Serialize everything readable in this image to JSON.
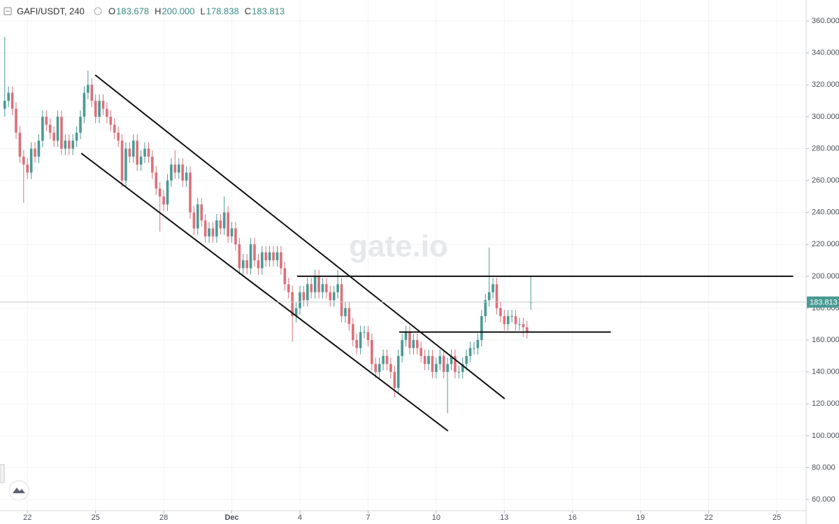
{
  "header": {
    "symbol": "GAFI/USDT, 240",
    "fields": [
      {
        "key": "O",
        "text": "183.678"
      },
      {
        "key": "H",
        "text": "200.000"
      },
      {
        "key": "L",
        "text": "178.838"
      },
      {
        "key": "C",
        "text": "183.813"
      }
    ]
  },
  "watermark": "gate.io",
  "chart_data": {
    "type": "candlestick",
    "up_color": "#4a9a94",
    "down_color": "#dc707b",
    "grid": true,
    "xlim": [
      -29,
      823
    ],
    "ylim": [
      53,
      373.2
    ],
    "xticks": [
      {
        "value": 0,
        "label": "22"
      },
      {
        "value": 72,
        "label": "25"
      },
      {
        "value": 144,
        "label": "28"
      },
      {
        "value": 216,
        "label": "Dec"
      },
      {
        "value": 288,
        "label": "4"
      },
      {
        "value": 360,
        "label": "7"
      },
      {
        "value": 432,
        "label": "10"
      },
      {
        "value": 504,
        "label": "13"
      },
      {
        "value": 576,
        "label": "16"
      },
      {
        "value": 648,
        "label": "19"
      },
      {
        "value": 720,
        "label": "22"
      },
      {
        "value": 792,
        "label": "25"
      }
    ],
    "yticks": [
      {
        "value": 60,
        "label": "60.000"
      },
      {
        "value": 80,
        "label": "80.000"
      },
      {
        "value": 100,
        "label": "100.000"
      },
      {
        "value": 120,
        "label": "120.000"
      },
      {
        "value": 140,
        "label": "140.000"
      },
      {
        "value": 160,
        "label": "160.000"
      },
      {
        "value": 180,
        "label": "180.000"
      },
      {
        "value": 200,
        "label": "200.000"
      },
      {
        "value": 220,
        "label": "220.000"
      },
      {
        "value": 240,
        "label": "240.000"
      },
      {
        "value": 260,
        "label": "260.000"
      },
      {
        "value": 280,
        "label": "280.000"
      },
      {
        "value": 300,
        "label": "300.000"
      },
      {
        "value": 320,
        "label": "320.000"
      },
      {
        "value": 340,
        "label": "340.000"
      },
      {
        "value": 360,
        "label": "360.000"
      }
    ],
    "last_price": {
      "value": 183.813,
      "label": "183.813"
    },
    "x": [
      -24,
      -20,
      -16,
      -12,
      -8,
      -4,
      0,
      4,
      8,
      12,
      16,
      20,
      24,
      28,
      32,
      36,
      40,
      44,
      48,
      52,
      56,
      60,
      64,
      68,
      72,
      76,
      80,
      84,
      88,
      92,
      96,
      100,
      104,
      108,
      112,
      116,
      120,
      124,
      128,
      132,
      136,
      140,
      144,
      148,
      152,
      156,
      160,
      164,
      168,
      172,
      176,
      180,
      184,
      188,
      192,
      196,
      200,
      204,
      208,
      212,
      216,
      220,
      224,
      228,
      232,
      236,
      240,
      244,
      248,
      252,
      256,
      260,
      264,
      268,
      272,
      276,
      280,
      284,
      288,
      292,
      296,
      300,
      304,
      308,
      312,
      316,
      320,
      324,
      328,
      332,
      336,
      340,
      344,
      348,
      352,
      356,
      360,
      364,
      368,
      372,
      376,
      380,
      384,
      388,
      392,
      396,
      400,
      404,
      408,
      412,
      416,
      420,
      424,
      428,
      432,
      436,
      440,
      444,
      448,
      452,
      456,
      460,
      464,
      468,
      472,
      476,
      480,
      484,
      488,
      492,
      496,
      500,
      504,
      508,
      512,
      516,
      520,
      524,
      528,
      532
    ],
    "ohlc": [
      [
        305,
        350,
        300,
        310
      ],
      [
        310,
        319,
        306,
        315
      ],
      [
        315,
        319,
        301,
        305
      ],
      [
        305,
        309,
        286,
        290
      ],
      [
        290,
        294,
        271,
        275
      ],
      [
        275,
        279,
        246,
        270
      ],
      [
        270,
        274,
        261,
        265
      ],
      [
        265,
        284,
        261,
        280
      ],
      [
        280,
        284,
        271,
        275
      ],
      [
        275,
        289,
        271,
        285
      ],
      [
        285,
        304,
        281,
        300
      ],
      [
        300,
        304,
        291,
        295
      ],
      [
        295,
        299,
        286,
        290
      ],
      [
        290,
        294,
        281,
        285
      ],
      [
        285,
        304,
        281,
        300
      ],
      [
        300,
        304,
        276,
        280
      ],
      [
        280,
        289,
        276,
        285
      ],
      [
        285,
        289,
        276,
        280
      ],
      [
        280,
        289,
        276,
        285
      ],
      [
        285,
        294,
        281,
        290
      ],
      [
        290,
        304,
        286,
        300
      ],
      [
        300,
        319,
        296,
        315
      ],
      [
        315,
        329,
        311,
        320
      ],
      [
        320,
        324,
        306,
        310
      ],
      [
        310,
        314,
        296,
        300
      ],
      [
        300,
        314,
        296,
        310
      ],
      [
        310,
        314,
        301,
        305
      ],
      [
        305,
        309,
        296,
        300
      ],
      [
        300,
        304,
        291,
        295
      ],
      [
        295,
        299,
        286,
        290
      ],
      [
        290,
        294,
        281,
        285
      ],
      [
        285,
        289,
        256,
        260
      ],
      [
        260,
        284,
        256,
        280
      ],
      [
        280,
        284,
        271,
        275
      ],
      [
        275,
        289,
        271,
        285
      ],
      [
        285,
        289,
        266,
        270
      ],
      [
        270,
        279,
        266,
        275
      ],
      [
        275,
        284,
        271,
        280
      ],
      [
        280,
        284,
        271,
        275
      ],
      [
        275,
        279,
        261,
        265
      ],
      [
        265,
        269,
        251,
        255
      ],
      [
        255,
        259,
        228,
        250
      ],
      [
        250,
        254,
        241,
        245
      ],
      [
        245,
        264,
        241,
        260
      ],
      [
        260,
        274,
        256,
        270
      ],
      [
        270,
        279,
        261,
        265
      ],
      [
        265,
        274,
        261,
        270
      ],
      [
        270,
        274,
        256,
        260
      ],
      [
        260,
        269,
        256,
        265
      ],
      [
        265,
        269,
        236,
        240
      ],
      [
        240,
        244,
        226,
        230
      ],
      [
        230,
        249,
        226,
        245
      ],
      [
        245,
        249,
        231,
        235
      ],
      [
        235,
        239,
        221,
        225
      ],
      [
        225,
        234,
        221,
        230
      ],
      [
        230,
        234,
        221,
        225
      ],
      [
        225,
        239,
        221,
        235
      ],
      [
        235,
        239,
        226,
        230
      ],
      [
        230,
        250,
        226,
        240
      ],
      [
        240,
        244,
        221,
        225
      ],
      [
        225,
        234,
        221,
        230
      ],
      [
        230,
        234,
        216,
        220
      ],
      [
        220,
        224,
        201,
        205
      ],
      [
        205,
        214,
        201,
        210
      ],
      [
        210,
        214,
        201,
        205
      ],
      [
        205,
        224,
        201,
        220
      ],
      [
        220,
        224,
        206,
        210
      ],
      [
        210,
        214,
        201,
        205
      ],
      [
        205,
        219,
        201,
        215
      ],
      [
        215,
        219,
        206,
        210
      ],
      [
        210,
        219,
        206,
        215
      ],
      [
        215,
        219,
        206,
        210
      ],
      [
        210,
        219,
        206,
        215
      ],
      [
        215,
        219,
        201,
        205
      ],
      [
        205,
        209,
        191,
        195
      ],
      [
        195,
        199,
        186,
        190
      ],
      [
        190,
        194,
        159,
        175
      ],
      [
        175,
        184,
        171,
        180
      ],
      [
        180,
        194,
        176,
        190
      ],
      [
        190,
        194,
        181,
        185
      ],
      [
        185,
        199,
        181,
        195
      ],
      [
        195,
        199,
        186,
        190
      ],
      [
        190,
        204,
        186,
        200
      ],
      [
        200,
        204,
        186,
        190
      ],
      [
        190,
        199,
        186,
        195
      ],
      [
        195,
        199,
        186,
        190
      ],
      [
        190,
        194,
        181,
        185
      ],
      [
        185,
        194,
        181,
        190
      ],
      [
        190,
        204,
        186,
        195
      ],
      [
        195,
        199,
        171,
        175
      ],
      [
        175,
        184,
        171,
        180
      ],
      [
        180,
        184,
        166,
        170
      ],
      [
        170,
        174,
        156,
        160
      ],
      [
        160,
        164,
        151,
        155
      ],
      [
        155,
        169,
        151,
        165
      ],
      [
        165,
        169,
        161,
        165
      ],
      [
        165,
        169,
        156,
        160
      ],
      [
        160,
        164,
        141,
        145
      ],
      [
        145,
        149,
        136,
        140
      ],
      [
        140,
        149,
        136,
        145
      ],
      [
        145,
        154,
        141,
        150
      ],
      [
        150,
        154,
        141,
        145
      ],
      [
        145,
        149,
        136,
        140
      ],
      [
        140,
        144,
        124,
        130
      ],
      [
        130,
        154,
        126,
        150
      ],
      [
        150,
        164,
        146,
        160
      ],
      [
        160,
        169,
        156,
        165
      ],
      [
        165,
        169,
        151,
        155
      ],
      [
        155,
        164,
        151,
        160
      ],
      [
        160,
        164,
        151,
        155
      ],
      [
        155,
        159,
        146,
        150
      ],
      [
        150,
        154,
        141,
        145
      ],
      [
        145,
        154,
        141,
        150
      ],
      [
        150,
        154,
        136,
        140
      ],
      [
        140,
        149,
        136,
        145
      ],
      [
        145,
        154,
        141,
        150
      ],
      [
        150,
        154,
        136,
        140
      ],
      [
        140,
        149,
        114,
        145
      ],
      [
        145,
        154,
        141,
        150
      ],
      [
        150,
        154,
        136,
        140
      ],
      [
        140,
        144,
        136,
        140
      ],
      [
        140,
        149,
        136,
        145
      ],
      [
        145,
        154,
        141,
        150
      ],
      [
        150,
        159,
        146,
        155
      ],
      [
        155,
        159,
        151,
        155
      ],
      [
        155,
        164,
        151,
        160
      ],
      [
        160,
        179,
        156,
        175
      ],
      [
        175,
        189,
        171,
        185
      ],
      [
        185,
        218,
        181,
        190
      ],
      [
        190,
        199,
        186,
        195
      ],
      [
        195,
        199,
        176,
        180
      ],
      [
        180,
        184,
        171,
        175
      ],
      [
        175,
        179,
        166,
        170
      ],
      [
        170,
        179,
        166,
        175
      ],
      [
        175,
        179,
        171,
        175
      ],
      [
        175,
        179,
        166,
        170
      ],
      [
        170,
        174,
        166,
        170
      ],
      [
        170,
        174,
        162,
        168
      ],
      [
        168,
        172,
        161,
        165
      ],
      [
        183.678,
        200,
        178.838,
        183.813
      ]
    ],
    "trendlines": [
      {
        "x": [
          71.6,
          504.4
        ],
        "y": [
          326.2,
          123.2
        ]
      },
      {
        "x": [
          56.9,
          444.5
        ],
        "y": [
          277.1,
          103
        ]
      },
      {
        "x": [
          285,
          809.4
        ],
        "y": [
          200,
          200
        ]
      },
      {
        "x": [
          392.9,
          616.6
        ],
        "y": [
          165,
          165
        ]
      }
    ]
  }
}
